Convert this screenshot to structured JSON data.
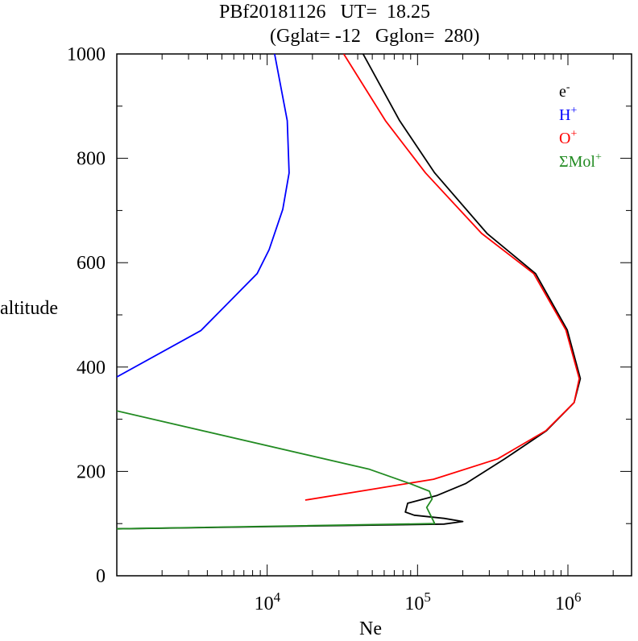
{
  "chart_data": {
    "type": "line",
    "title": "PBf20181126   UT=  18.25",
    "subtitle": "(Gglat= -12   Gglon=  280)",
    "xlabel": "Ne",
    "ylabel": "altitude",
    "xscale": "log",
    "xlim": [
      1000,
      2650000
    ],
    "ylim": [
      0,
      1000
    ],
    "xticks": [
      {
        "base": "10",
        "exp": "4",
        "value": 10000
      },
      {
        "base": "10",
        "exp": "5",
        "value": 100000
      },
      {
        "base": "10",
        "exp": "6",
        "value": 1000000
      }
    ],
    "yticks": [
      "0",
      "200",
      "400",
      "600",
      "800",
      "1000"
    ],
    "legend_position": "top-right",
    "series": [
      {
        "name": "e",
        "sup": "-",
        "color": "#000000",
        "points": [
          [
            1000,
            90
          ],
          [
            150000,
            99
          ],
          [
            200000,
            104
          ],
          [
            150000,
            110
          ],
          [
            95000,
            116
          ],
          [
            83000,
            122
          ],
          [
            86000,
            139
          ],
          [
            135000,
            154
          ],
          [
            210000,
            177
          ],
          [
            380000,
            224
          ],
          [
            720000,
            278
          ],
          [
            1100000,
            332
          ],
          [
            1210000,
            378
          ],
          [
            990000,
            471
          ],
          [
            610000,
            579
          ],
          [
            290000,
            656
          ],
          [
            130000,
            772
          ],
          [
            76000,
            872
          ],
          [
            43400,
            1000
          ]
        ]
      },
      {
        "name": "H",
        "sup": "+",
        "color": "#0000ff",
        "points": [
          [
            1000,
            381
          ],
          [
            3630,
            470
          ],
          [
            8580,
            579
          ],
          [
            10300,
            625
          ],
          [
            12700,
            702
          ],
          [
            14000,
            772
          ],
          [
            13600,
            872
          ],
          [
            11200,
            1000
          ]
        ]
      },
      {
        "name": "O",
        "sup": "+",
        "color": "#ff0000",
        "points": [
          [
            17900,
            145
          ],
          [
            47900,
            165
          ],
          [
            128000,
            185
          ],
          [
            341000,
            224
          ],
          [
            713000,
            278
          ],
          [
            1100000,
            332
          ],
          [
            1190000,
            378
          ],
          [
            970000,
            471
          ],
          [
            593000,
            579
          ],
          [
            267000,
            656
          ],
          [
            113000,
            772
          ],
          [
            61200,
            872
          ],
          [
            32300,
            1000
          ]
        ]
      },
      {
        "name": "ΣMol",
        "sup": "+",
        "color": "#228b22",
        "points": [
          [
            1000,
            90
          ],
          [
            130000,
            100
          ],
          [
            115000,
            131
          ],
          [
            125000,
            147
          ],
          [
            120000,
            162
          ],
          [
            88500,
            177
          ],
          [
            47900,
            204
          ],
          [
            1000,
            316
          ]
        ]
      }
    ]
  }
}
